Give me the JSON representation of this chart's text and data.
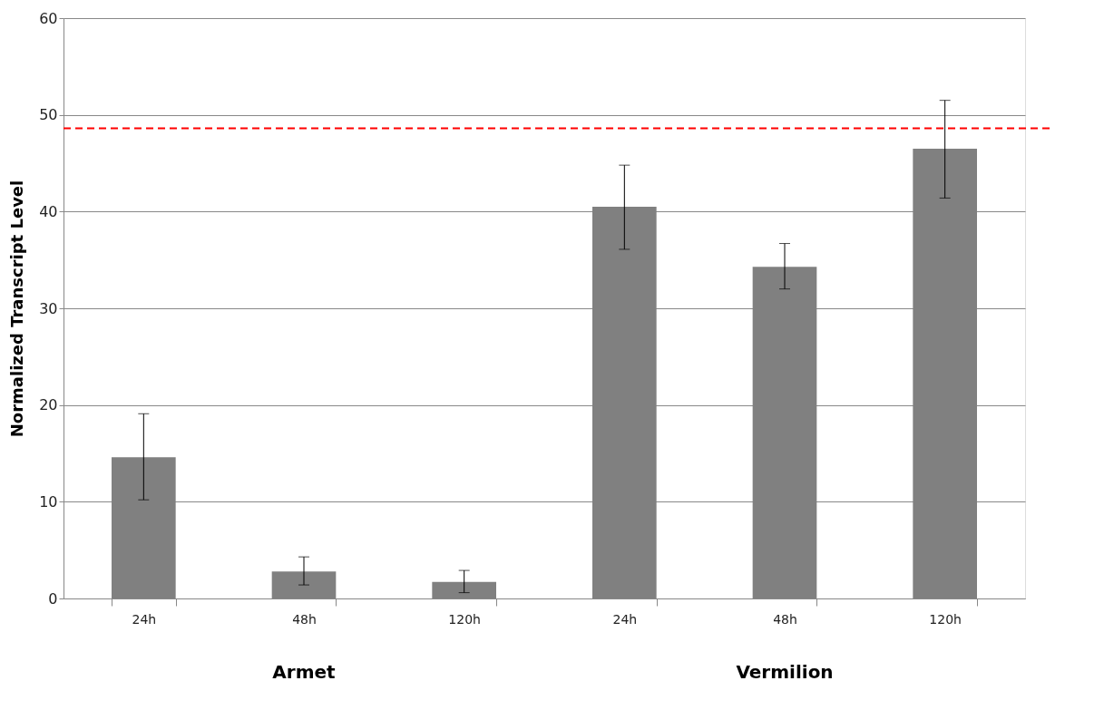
{
  "chart_data": {
    "type": "bar",
    "ylabel": "Normalized Transcript Level",
    "categories": [
      "24h",
      "48h",
      "120h",
      "24h",
      "48h",
      "120h"
    ],
    "values": [
      14.6,
      2.8,
      1.7,
      40.5,
      34.3,
      46.5
    ],
    "errors": [
      [
        10.2,
        19.1
      ],
      [
        1.4,
        4.3
      ],
      [
        0.6,
        2.9
      ],
      [
        36.1,
        44.8
      ],
      [
        32.0,
        36.7
      ],
      [
        41.4,
        51.5
      ]
    ],
    "color": "#808080",
    "ylim": [
      0,
      60
    ],
    "yticks": [
      0,
      10,
      20,
      30,
      40,
      50,
      60
    ],
    "grid": "y",
    "ref_lines": [
      {
        "axis": "y",
        "value": 48.6,
        "color": "#ff0000",
        "line_style": "dashed"
      }
    ],
    "annotations": [
      "Armet",
      "Vermilion"
    ]
  }
}
